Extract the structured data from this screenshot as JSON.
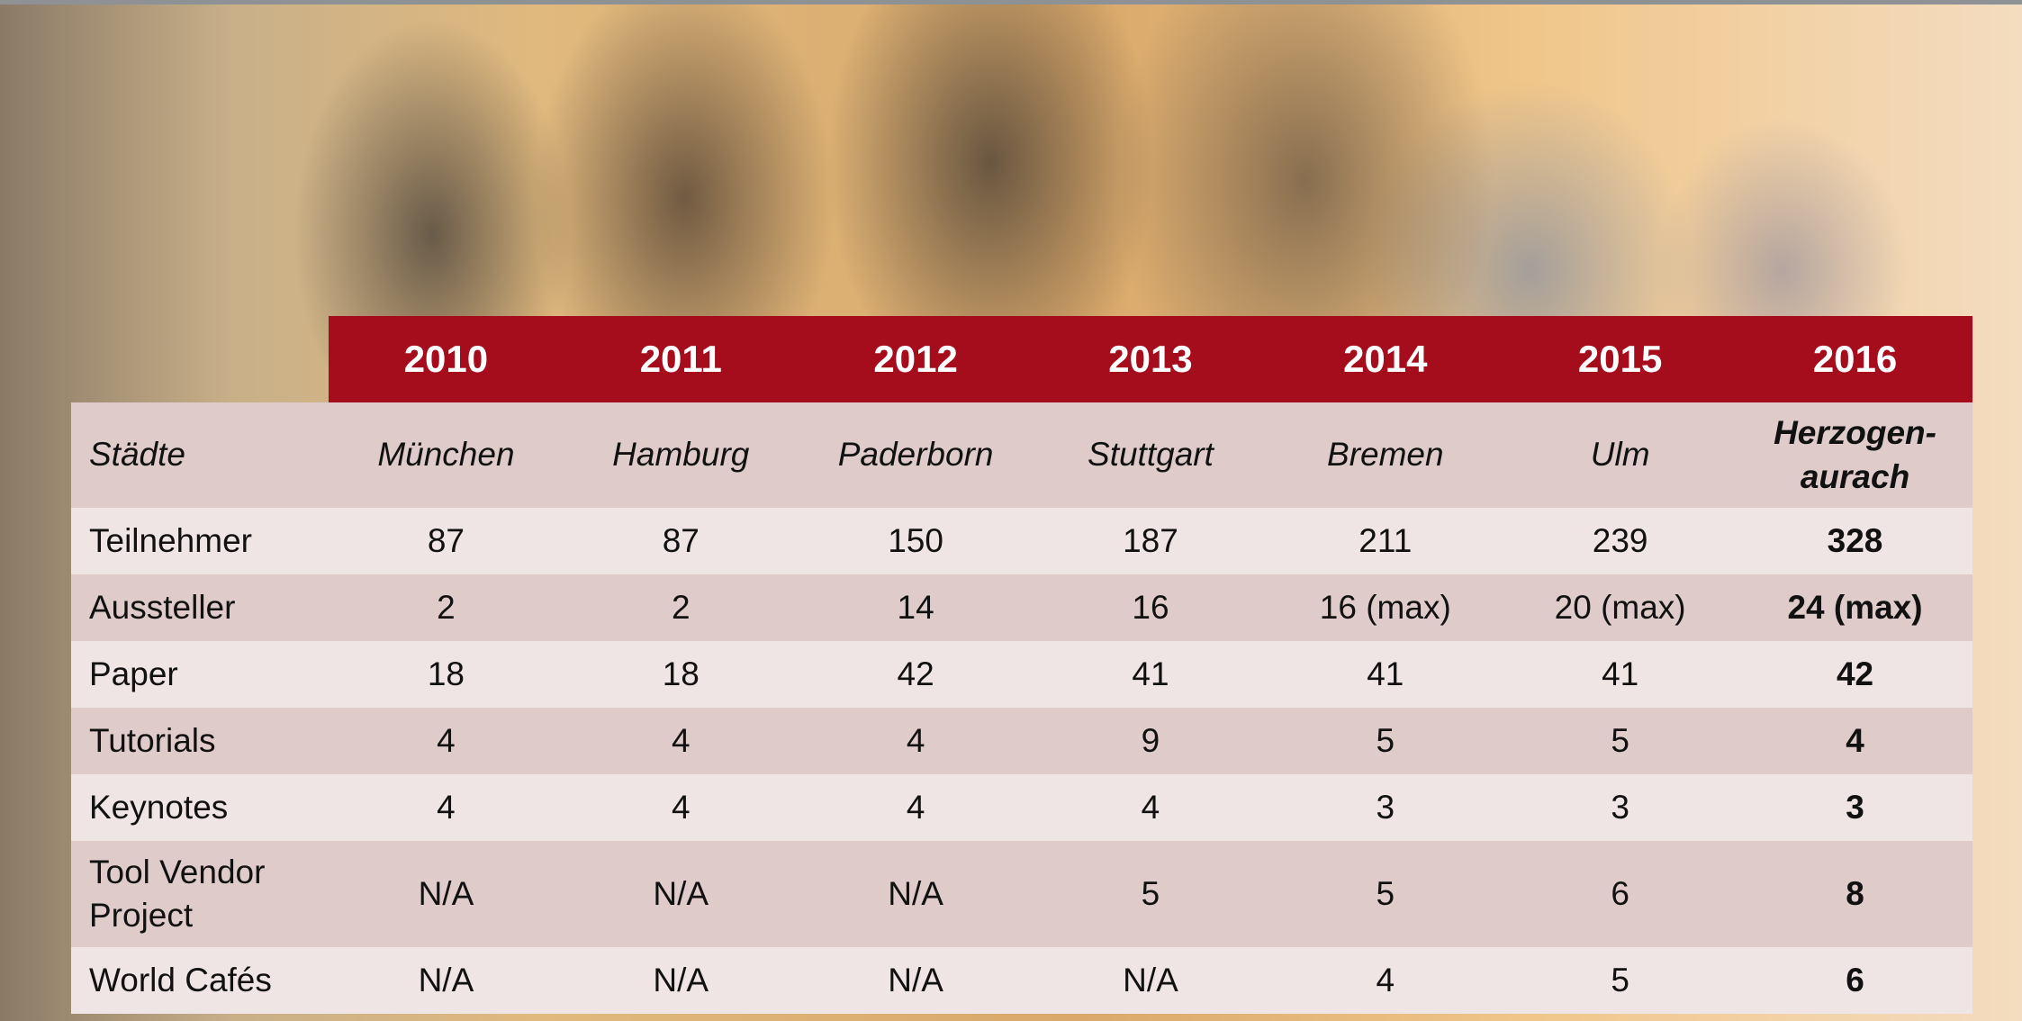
{
  "table": {
    "years": [
      "2010",
      "2011",
      "2012",
      "2013",
      "2014",
      "2015",
      "2016"
    ],
    "rows": [
      {
        "label": "Städte",
        "cells": [
          "München",
          "Hamburg",
          "Paderborn",
          "Stuttgart",
          "Bremen",
          "Ulm",
          "Herzogen-aurach"
        ]
      },
      {
        "label": "Teilnehmer",
        "cells": [
          "87",
          "87",
          "150",
          "187",
          "211",
          "239",
          "328"
        ]
      },
      {
        "label": "Aussteller",
        "cells": [
          "2",
          "2",
          "14",
          "16",
          "16 (max)",
          "20 (max)",
          "24 (max)"
        ]
      },
      {
        "label": "Paper",
        "cells": [
          "18",
          "18",
          "42",
          "41",
          "41",
          "41",
          "42"
        ]
      },
      {
        "label": "Tutorials",
        "cells": [
          "4",
          "4",
          "4",
          "9",
          "5",
          "5",
          "4"
        ]
      },
      {
        "label": "Keynotes",
        "cells": [
          "4",
          "4",
          "4",
          "4",
          "3",
          "3",
          "3"
        ]
      },
      {
        "label": "Tool Vendor Project",
        "cells": [
          "N/A",
          "N/A",
          "N/A",
          "5",
          "5",
          "6",
          "8"
        ]
      },
      {
        "label": "World Cafés",
        "cells": [
          "N/A",
          "N/A",
          "N/A",
          "N/A",
          "4",
          "5",
          "6"
        ]
      }
    ]
  }
}
